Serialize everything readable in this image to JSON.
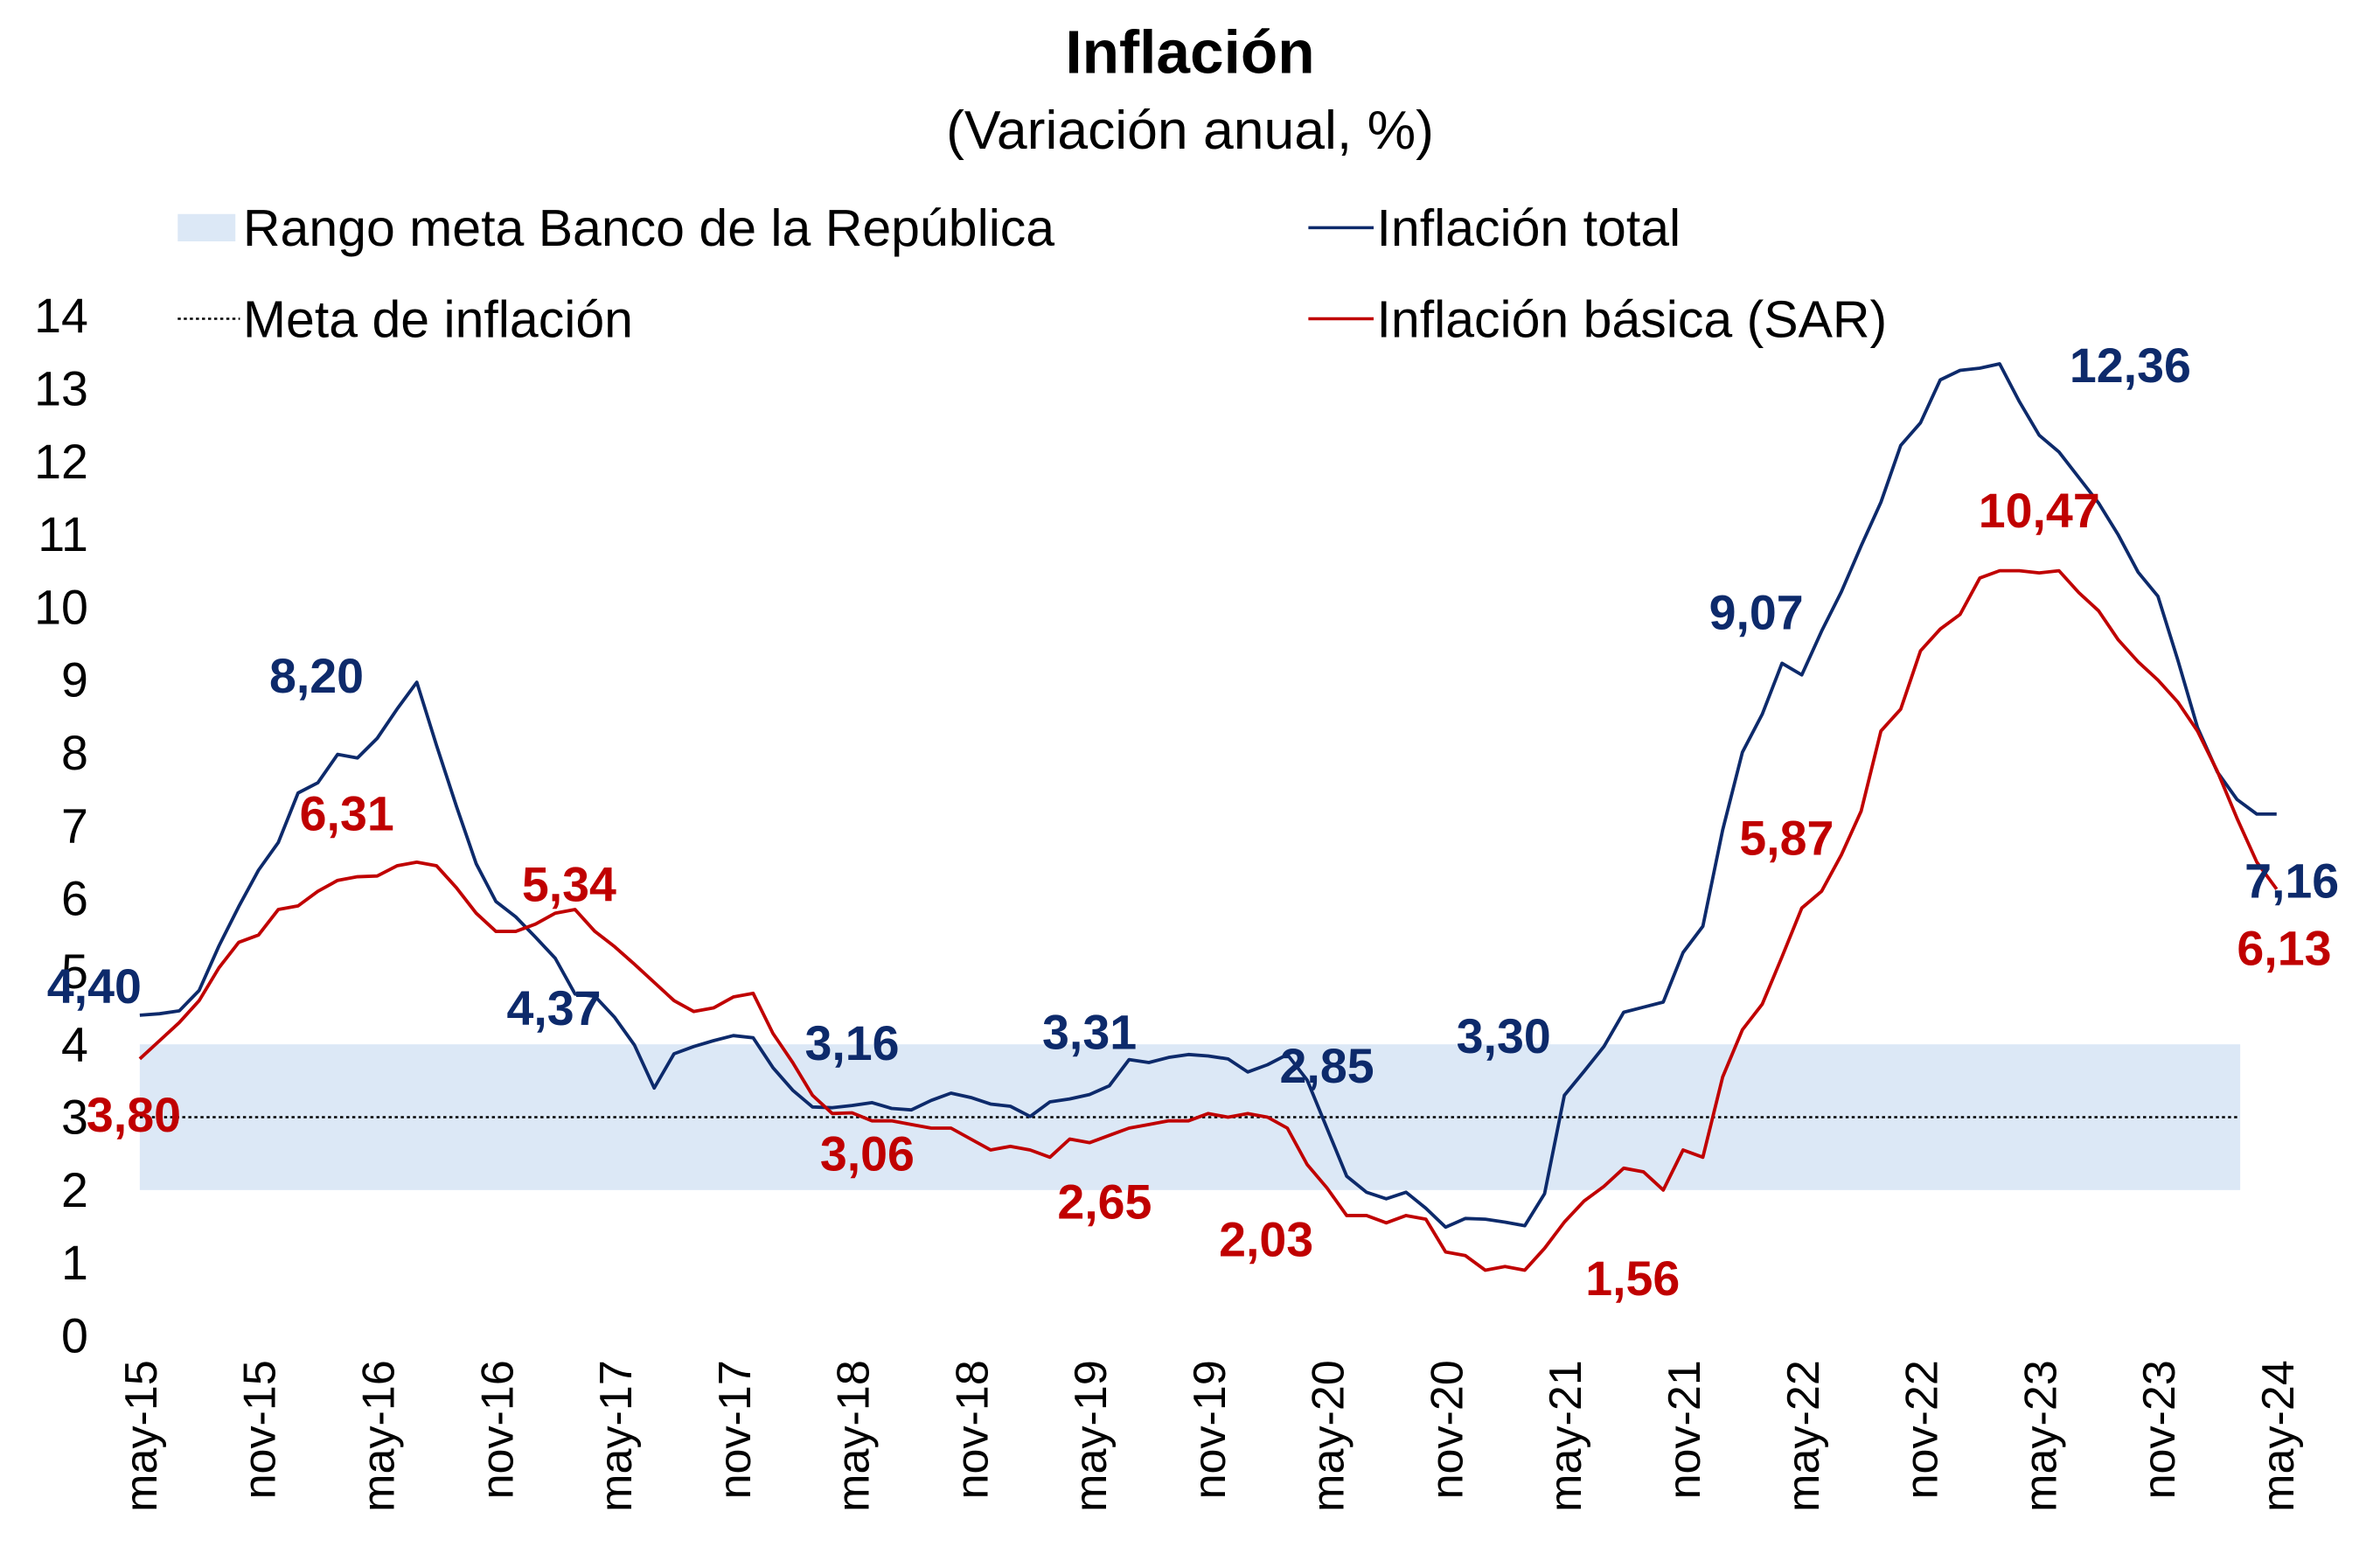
{
  "chart_data": {
    "type": "line",
    "title": "Inflación",
    "subtitle": "(Variación anual, %)",
    "x": [
      "may-15",
      null,
      null,
      null,
      null,
      null,
      "nov-15",
      null,
      null,
      null,
      null,
      null,
      "may-16",
      null,
      null,
      null,
      null,
      null,
      "nov-16",
      null,
      null,
      null,
      null,
      null,
      "may-17",
      null,
      null,
      null,
      null,
      null,
      "nov-17",
      null,
      null,
      null,
      null,
      null,
      "may-18",
      null,
      null,
      null,
      null,
      null,
      "nov-18",
      null,
      null,
      null,
      null,
      null,
      "may-19",
      null,
      null,
      null,
      null,
      null,
      "nov-19",
      null,
      null,
      null,
      null,
      null,
      "may-20",
      null,
      null,
      null,
      null,
      null,
      "nov-20",
      null,
      null,
      null,
      null,
      null,
      "may-21",
      null,
      null,
      null,
      null,
      null,
      "nov-21",
      null,
      null,
      null,
      null,
      null,
      "may-22",
      null,
      null,
      null,
      null,
      null,
      "nov-22",
      null,
      null,
      null,
      null,
      null,
      "may-23",
      null,
      null,
      null,
      null,
      null,
      "nov-23",
      null,
      null,
      null,
      null,
      null,
      "may-24"
    ],
    "series": [
      {
        "name": "Inflación total",
        "color": "#0d2a6b",
        "values": [
          4.4,
          4.42,
          4.46,
          4.74,
          5.35,
          5.89,
          6.39,
          6.77,
          7.45,
          7.59,
          7.98,
          7.93,
          8.2,
          8.6,
          8.97,
          8.1,
          7.27,
          6.48,
          5.96,
          5.75,
          5.47,
          5.18,
          4.69,
          4.66,
          4.37,
          3.99,
          3.4,
          3.87,
          3.97,
          4.05,
          4.12,
          4.09,
          3.68,
          3.37,
          3.14,
          3.13,
          3.16,
          3.2,
          3.12,
          3.1,
          3.23,
          3.33,
          3.27,
          3.18,
          3.15,
          3.01,
          3.21,
          3.25,
          3.31,
          3.43,
          3.79,
          3.75,
          3.82,
          3.86,
          3.84,
          3.8,
          3.62,
          3.72,
          3.86,
          3.51,
          2.85,
          2.19,
          1.97,
          1.88,
          1.97,
          1.75,
          1.49,
          1.61,
          1.6,
          1.56,
          1.51,
          1.95,
          3.3,
          3.63,
          3.97,
          4.44,
          4.51,
          4.58,
          5.26,
          5.62,
          6.94,
          8.01,
          8.53,
          9.23,
          9.07,
          9.67,
          10.21,
          10.84,
          11.44,
          12.22,
          12.53,
          13.12,
          13.25,
          13.28,
          13.34,
          12.82,
          12.36,
          12.13,
          11.78,
          11.43,
          10.99,
          10.48,
          10.15,
          9.28,
          8.35,
          7.74,
          7.36,
          7.16,
          7.16
        ],
        "value_labels": [
          "4,40",
          null,
          null,
          null,
          null,
          null,
          null,
          null,
          null,
          null,
          null,
          null,
          "8,20",
          null,
          null,
          null,
          null,
          null,
          null,
          null,
          null,
          null,
          null,
          null,
          "4,37",
          null,
          null,
          null,
          null,
          null,
          null,
          null,
          null,
          null,
          null,
          null,
          "3,16",
          null,
          null,
          null,
          null,
          null,
          null,
          null,
          null,
          null,
          null,
          null,
          "3,31",
          null,
          null,
          null,
          null,
          null,
          null,
          null,
          null,
          null,
          null,
          null,
          "2,85",
          null,
          null,
          null,
          null,
          null,
          null,
          null,
          null,
          null,
          null,
          null,
          "3,30",
          null,
          null,
          null,
          null,
          null,
          null,
          null,
          null,
          null,
          null,
          null,
          "9,07",
          null,
          null,
          null,
          null,
          null,
          null,
          null,
          null,
          null,
          null,
          null,
          "12,36",
          null,
          null,
          null,
          null,
          null,
          null,
          null,
          null,
          null,
          null,
          null,
          "7,16"
        ]
      },
      {
        "name": "Inflación básica (SAR)",
        "color": "#c00000",
        "values": [
          3.8,
          4.05,
          4.3,
          4.6,
          5.05,
          5.4,
          5.5,
          5.85,
          5.9,
          6.1,
          6.25,
          6.3,
          6.31,
          6.45,
          6.5,
          6.45,
          6.15,
          5.8,
          5.55,
          5.55,
          5.65,
          5.8,
          5.85,
          5.55,
          5.34,
          5.1,
          4.85,
          4.6,
          4.45,
          4.5,
          4.65,
          4.7,
          4.15,
          3.75,
          3.3,
          3.05,
          3.06,
          2.95,
          2.95,
          2.9,
          2.85,
          2.85,
          2.7,
          2.55,
          2.6,
          2.55,
          2.45,
          2.7,
          2.65,
          2.75,
          2.85,
          2.9,
          2.95,
          2.95,
          3.05,
          3.0,
          3.05,
          3.0,
          2.85,
          2.35,
          2.03,
          1.65,
          1.65,
          1.55,
          1.65,
          1.6,
          1.15,
          1.1,
          0.9,
          0.95,
          0.9,
          1.2,
          1.56,
          1.85,
          2.05,
          2.3,
          2.25,
          2.0,
          2.55,
          2.45,
          3.55,
          4.2,
          4.55,
          5.2,
          5.87,
          6.1,
          6.6,
          7.2,
          8.3,
          8.6,
          9.4,
          9.7,
          9.9,
          10.4,
          10.5,
          10.5,
          10.47,
          10.5,
          10.2,
          9.95,
          9.55,
          9.25,
          9.0,
          8.7,
          8.3,
          7.75,
          7.1,
          6.5,
          6.13
        ],
        "value_labels": [
          "3,80",
          null,
          null,
          null,
          null,
          null,
          null,
          null,
          null,
          null,
          null,
          null,
          "6,31",
          null,
          null,
          null,
          null,
          null,
          null,
          null,
          null,
          null,
          null,
          null,
          "5,34",
          null,
          null,
          null,
          null,
          null,
          null,
          null,
          null,
          null,
          null,
          null,
          "3,06",
          null,
          null,
          null,
          null,
          null,
          null,
          null,
          null,
          null,
          null,
          null,
          "2,65",
          null,
          null,
          null,
          null,
          null,
          null,
          null,
          null,
          null,
          null,
          null,
          "2,03",
          null,
          null,
          null,
          null,
          null,
          null,
          null,
          null,
          null,
          null,
          null,
          "1,56",
          null,
          null,
          null,
          null,
          null,
          null,
          null,
          null,
          null,
          null,
          null,
          "5,87",
          null,
          null,
          null,
          null,
          null,
          null,
          null,
          null,
          null,
          null,
          null,
          "10,47",
          null,
          null,
          null,
          null,
          null,
          null,
          null,
          null,
          null,
          null,
          null,
          "6,13"
        ]
      }
    ],
    "target_range": {
      "name": "Rango meta Banco de la República",
      "color": "#dce8f6",
      "values": [
        2,
        4
      ]
    },
    "target": {
      "name": "Meta de inflación",
      "color": "#000000",
      "value": 3
    },
    "ylim": [
      0,
      14
    ],
    "yticks": [
      0,
      1,
      2,
      3,
      4,
      5,
      6,
      7,
      8,
      9,
      10,
      11,
      12,
      13,
      14
    ]
  }
}
